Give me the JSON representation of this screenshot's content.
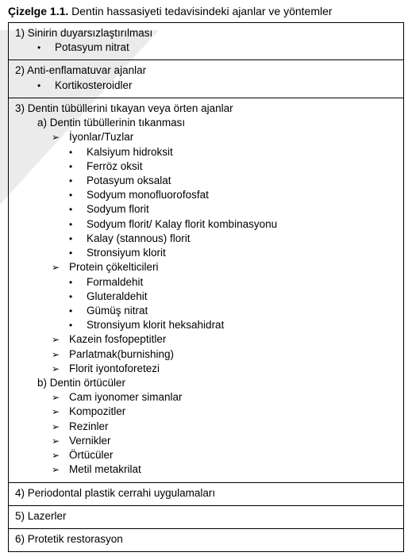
{
  "caption": {
    "label": "Çizelge 1.1.",
    "text": "Dentin hassasiyeti tedavisindeki ajanlar ve yöntemler"
  },
  "rows": {
    "r1": {
      "title": "1) Sinirin duyarsızlaştırılması",
      "bullets": [
        "Potasyum nitrat"
      ]
    },
    "r2": {
      "title": "2) Anti-enflamatuvar ajanlar",
      "bullets": [
        "Kortikosteroidler"
      ]
    },
    "r3": {
      "title": "3) Dentin tübüllerini tıkayan veya örten ajanlar",
      "a": {
        "title": "a) Dentin tübüllerinin tıkanması",
        "g1": {
          "title": "İyonlar/Tuzlar",
          "items": [
            "Kalsiyum hidroksit",
            "Ferröz oksit",
            "Potasyum oksalat",
            "Sodyum monofluorofosfat",
            "Sodyum florit",
            "Sodyum florit/ Kalay florit kombinasyonu",
            "Kalay (stannous) florit",
            "Stronsiyum klorit"
          ]
        },
        "g2": {
          "title": "Protein çökelticileri",
          "items": [
            "Formaldehit",
            "Gluteraldehit",
            "Gümüş nitrat",
            "Stronsiyum klorit heksahidrat"
          ]
        },
        "g3": [
          "Kazein fosfopeptitler",
          "Parlatmak(burnishing)",
          "Florit iyontoforetezi"
        ]
      },
      "b": {
        "title": "b) Dentin örtücüler",
        "items": [
          "Cam iyonomer simanlar",
          "Kompozitler",
          "Rezinler",
          "Vernikler",
          "Örtücüler",
          "Metil metakrilat"
        ]
      }
    },
    "r4": {
      "title": "4) Periodontal plastik cerrahi uygulamaları"
    },
    "r5": {
      "title": "5) Lazerler"
    },
    "r6": {
      "title": "6) Protetik restorasyon"
    }
  },
  "markers": {
    "dot": "•",
    "chev": "➢"
  }
}
